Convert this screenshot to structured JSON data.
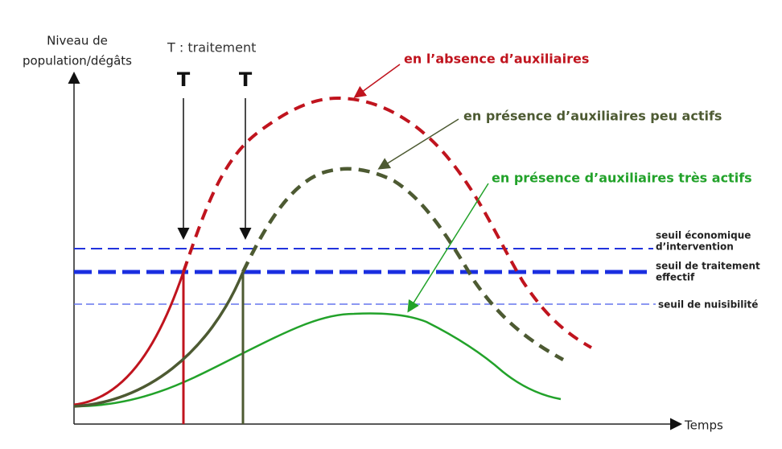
{
  "y_axis_label": [
    "Niveau de",
    "population/dégâts"
  ],
  "x_axis_label": "Temps",
  "legend_note": "T : traitement",
  "treatments": [
    "T",
    "T"
  ],
  "curves": [
    {
      "label": "en l’absence d’auxiliaires"
    },
    {
      "label": "en présence d’auxiliaires peu actifs"
    },
    {
      "label": "en présence d’auxiliaires très actifs"
    }
  ],
  "thresholds": [
    {
      "label": [
        "seuil économique",
        "d’intervention"
      ]
    },
    {
      "label": [
        "seuil de traitement",
        "effectif"
      ]
    },
    {
      "label": [
        "seuil de nuisibilité"
      ]
    }
  ]
}
